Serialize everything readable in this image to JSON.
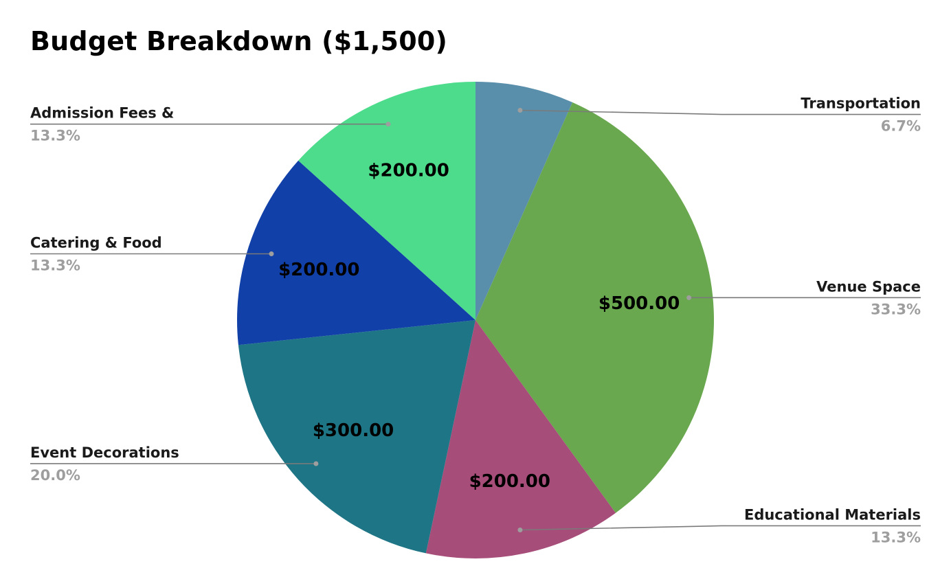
{
  "chart_data": {
    "type": "pie",
    "title": "Budget Breakdown ($1,500)",
    "total": 1500,
    "start_angle_deg": 0,
    "direction": "clockwise",
    "slices": [
      {
        "name": "Transportation",
        "value": 100,
        "percent_label": "6.7%",
        "value_label": "",
        "color": "#5a8fab",
        "label_side": "right"
      },
      {
        "name": "Venue Space",
        "value": 500,
        "percent_label": "33.3%",
        "value_label": "$500.00",
        "color": "#6aa84f",
        "label_side": "right"
      },
      {
        "name": "Educational Materials",
        "value": 200,
        "percent_label": "13.3%",
        "value_label": "$200.00",
        "color": "#a64d79",
        "label_side": "right"
      },
      {
        "name": "Event Decorations",
        "value": 300,
        "percent_label": "20.0%",
        "value_label": "$300.00",
        "color": "#1e7585",
        "label_side": "left"
      },
      {
        "name": "Catering & Food",
        "value": 200,
        "percent_label": "13.3%",
        "value_label": "$200.00",
        "color": "#1140a8",
        "label_side": "left"
      },
      {
        "name": "Admission Fees &",
        "value": 200,
        "percent_label": "13.3%",
        "value_label": "$200.00",
        "color": "#4ddc8c",
        "label_side": "left"
      }
    ]
  }
}
